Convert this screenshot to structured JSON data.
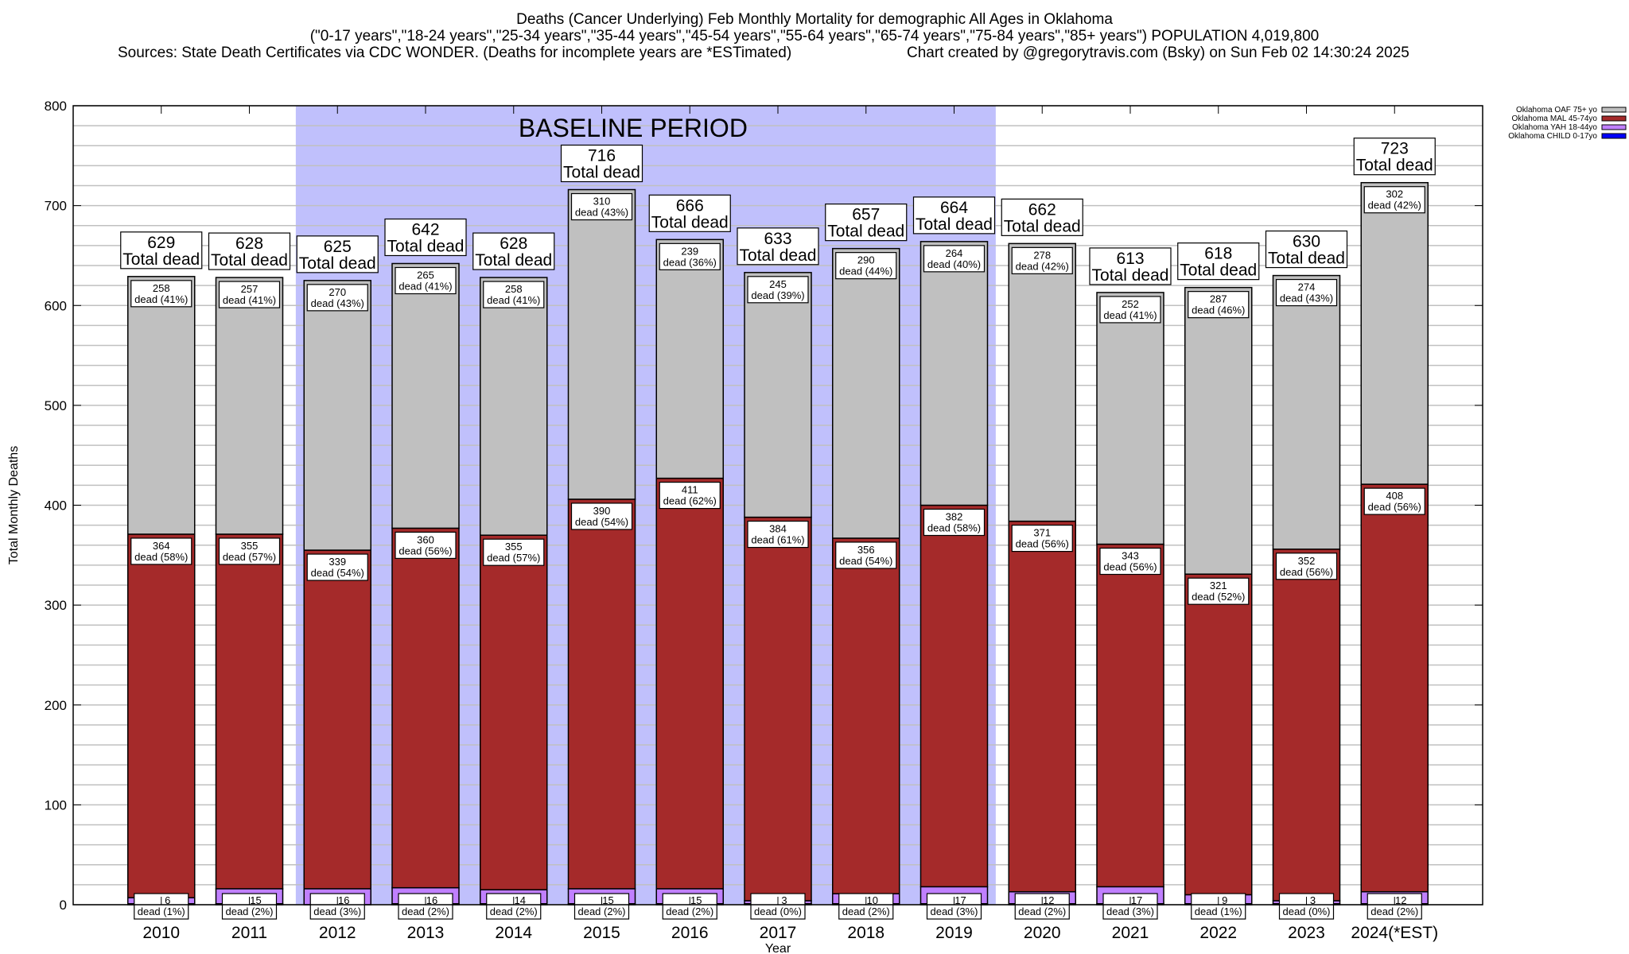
{
  "chart_data": {
    "type": "bar",
    "stacked": true,
    "title": "Deaths (Cancer Underlying) Feb Monthly Mortality for demographic All Ages in Oklahoma",
    "subtitle": "(\"0-17 years\",\"18-24 years\",\"25-34 years\",\"35-44 years\",\"45-54 years\",\"55-64 years\",\"65-74 years\",\"75-84 years\",\"85+ years\") POPULATION 4,019,800",
    "sources": "Sources: State Death Certificates via CDC WONDER. (Deaths for incomplete years are *ESTimated)",
    "credit": "Chart created by @gregorytravis.com (Bsky) on Sun Feb 02 14:30:24 2025",
    "xlabel": "Year",
    "ylabel": "Total Monthly Deaths",
    "ylim": [
      0,
      800
    ],
    "yticks": [
      "0",
      "100",
      "200",
      "300",
      "400",
      "500",
      "600",
      "700",
      "800"
    ],
    "grid": true,
    "legend_position": "top-right",
    "annotation": "BASELINE PERIOD",
    "baseline_range": [
      "2012",
      "2019"
    ],
    "baseline_color": "#c0c0fc",
    "total_label": "Total dead",
    "dead_word": "dead",
    "categories": [
      "2010",
      "2011",
      "2012",
      "2013",
      "2014",
      "2015",
      "2016",
      "2017",
      "2018",
      "2019",
      "2020",
      "2021",
      "2022",
      "2023",
      "2024(*EST)"
    ],
    "totals": [
      629,
      628,
      625,
      642,
      628,
      716,
      666,
      633,
      657,
      664,
      662,
      613,
      618,
      630,
      723
    ],
    "series": [
      {
        "name": "Oklahoma CHILD 0-17yo",
        "color": "#0000ff",
        "values": [
          1,
          1,
          0,
          1,
          1,
          1,
          1,
          1,
          1,
          1,
          1,
          1,
          1,
          1,
          1
        ],
        "pct": null
      },
      {
        "name": "Oklahoma YAH 18-44yo",
        "color": "#c080ff",
        "values": [
          6,
          15,
          16,
          16,
          14,
          15,
          15,
          3,
          10,
          17,
          12,
          17,
          9,
          3,
          12
        ],
        "pct": [
          "1%",
          "2%",
          "3%",
          "2%",
          "2%",
          "2%",
          "2%",
          "0%",
          "2%",
          "3%",
          "2%",
          "3%",
          "1%",
          "0%",
          "2%"
        ]
      },
      {
        "name": "Oklahoma MAL 45-74yo",
        "color": "#a52a2a",
        "values": [
          364,
          355,
          339,
          360,
          355,
          390,
          411,
          384,
          356,
          382,
          371,
          343,
          321,
          352,
          408
        ],
        "pct": [
          "58%",
          "57%",
          "54%",
          "56%",
          "57%",
          "54%",
          "62%",
          "61%",
          "54%",
          "58%",
          "56%",
          "56%",
          "52%",
          "56%",
          "56%"
        ]
      },
      {
        "name": "Oklahoma OAF 75+ yo",
        "color": "#c0c0c0",
        "values": [
          258,
          257,
          270,
          265,
          258,
          310,
          239,
          245,
          290,
          264,
          278,
          252,
          287,
          274,
          302
        ],
        "pct": [
          "41%",
          "41%",
          "43%",
          "41%",
          "41%",
          "43%",
          "36%",
          "39%",
          "44%",
          "40%",
          "42%",
          "41%",
          "46%",
          "43%",
          "42%"
        ]
      }
    ]
  }
}
